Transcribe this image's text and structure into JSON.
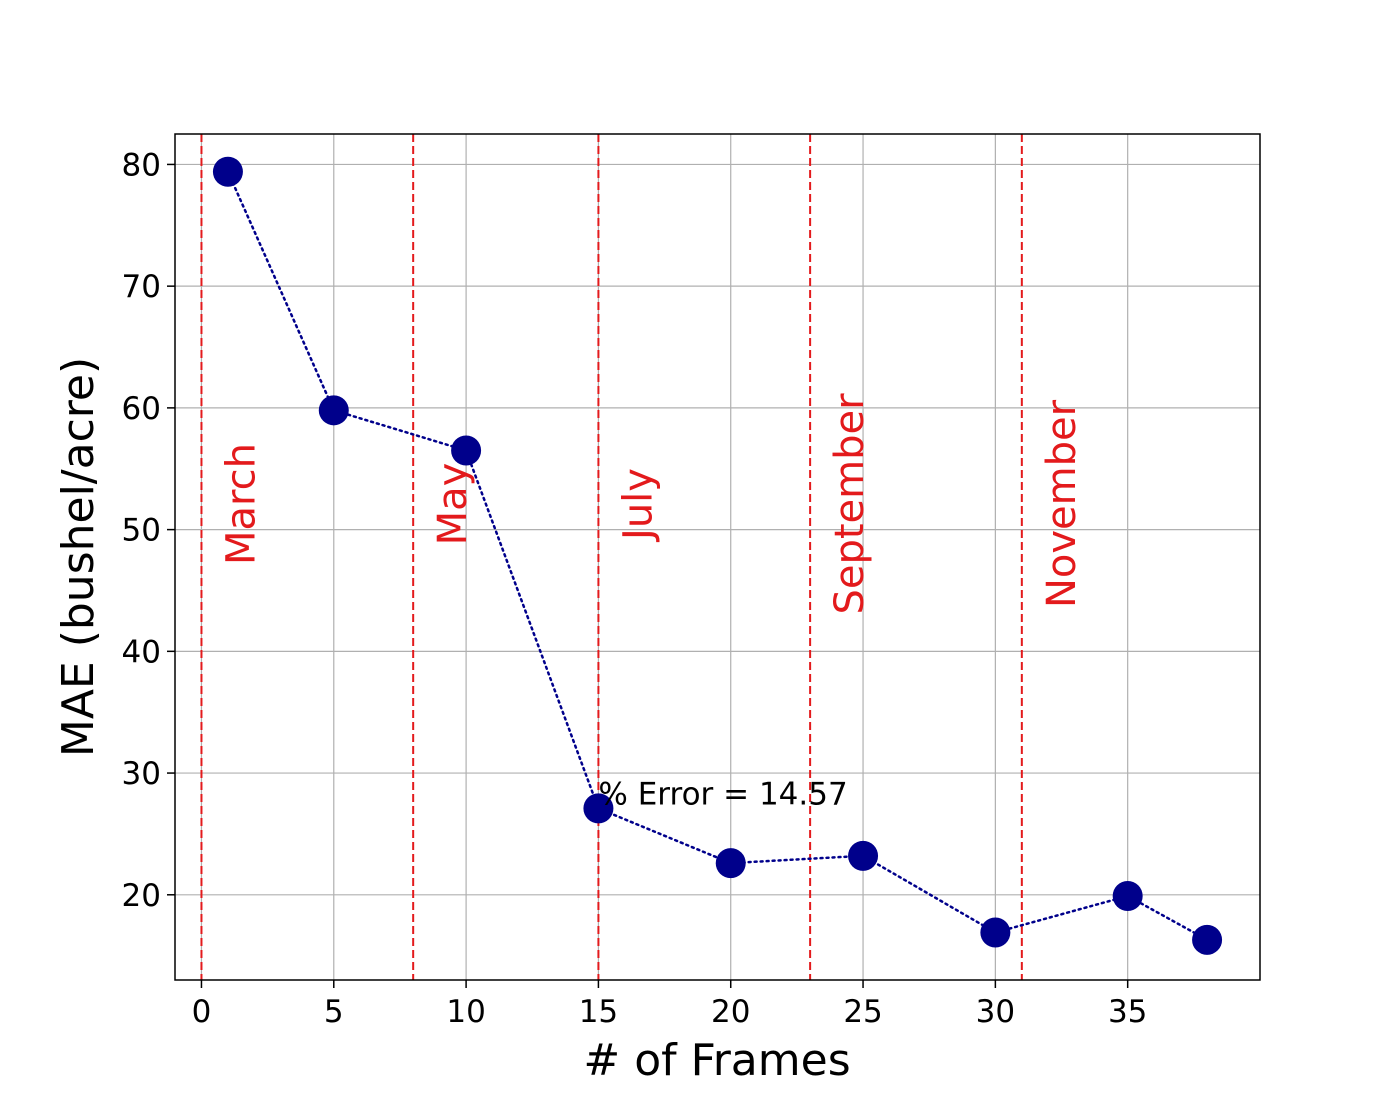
{
  "chart_data": {
    "type": "line",
    "xlabel": "# of Frames",
    "ylabel": "MAE (bushel/acre)",
    "xlim": [
      -1,
      40
    ],
    "ylim": [
      13,
      82.5
    ],
    "xticks": [
      0,
      5,
      10,
      15,
      20,
      25,
      30,
      35
    ],
    "yticks": [
      20,
      30,
      40,
      50,
      60,
      70,
      80
    ],
    "grid": true,
    "series": [
      {
        "x": [
          1,
          5,
          10,
          15,
          20,
          25,
          30,
          35,
          38
        ],
        "y": [
          79.4,
          59.8,
          56.5,
          27.1,
          22.6,
          23.2,
          16.9,
          19.9,
          16.3
        ],
        "color": "#00008b",
        "line_style": "dotted",
        "marker": "circle"
      }
    ],
    "vlines": [
      {
        "x": 0,
        "label": "March"
      },
      {
        "x": 8,
        "label": "May"
      },
      {
        "x": 15,
        "label": "July"
      },
      {
        "x": 23,
        "label": "September"
      },
      {
        "x": 31,
        "label": "November"
      }
    ],
    "vline_color": "#e31a1c",
    "annotation": {
      "text": "% Error = 14.57",
      "x": 15,
      "y": 27.1
    }
  }
}
